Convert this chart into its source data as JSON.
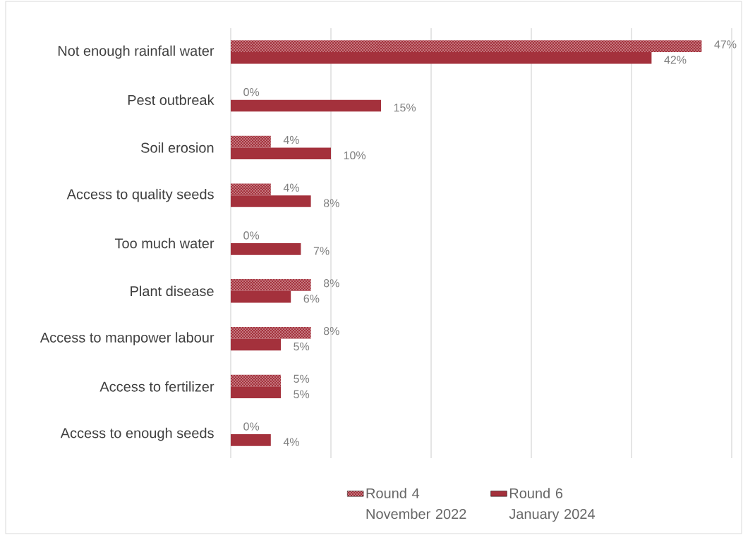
{
  "chart_data": {
    "type": "bar",
    "orientation": "horizontal",
    "categories": [
      "Not enough rainfall water",
      "Pest outbreak",
      "Soil erosion",
      "Access to quality seeds",
      "Too much water",
      "Plant disease",
      "Access to manpower labour",
      "Access to fertilizer",
      "Access to enough seeds"
    ],
    "series": [
      {
        "name": "Round 4 November 2022",
        "color": "#a4313c",
        "values": [
          47,
          0,
          4,
          4,
          0,
          8,
          8,
          5,
          0
        ],
        "value_labels": [
          "47%",
          "0%",
          "4%",
          "4%",
          "0%",
          "8%",
          "8%",
          "5%",
          "0%"
        ]
      },
      {
        "name": "Round 6 January 2024",
        "color": "#a4313c",
        "values": [
          42,
          15,
          10,
          8,
          7,
          6,
          5,
          5,
          4
        ],
        "value_labels": [
          "42%",
          "15%",
          "10%",
          "8%",
          "7%",
          "6%",
          "5%",
          "5%",
          "4%"
        ]
      }
    ],
    "xlim": [
      0,
      50
    ],
    "xticks": [
      {
        "value": 0,
        "label": null
      },
      {
        "value": 10,
        "label": null
      },
      {
        "value": 20,
        "label": null
      },
      {
        "value": 30,
        "label": null
      },
      {
        "value": 40,
        "label": null
      },
      {
        "value": 50,
        "label": null
      }
    ],
    "tick_labels": "y",
    "grid": "x",
    "legend": "bottom"
  }
}
